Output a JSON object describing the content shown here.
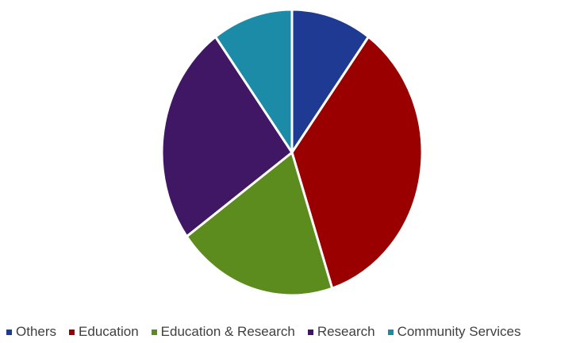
{
  "chart_data": {
    "type": "pie",
    "title": "",
    "slices": [
      {
        "label": "Others",
        "value": 10,
        "color": "#1F3A93"
      },
      {
        "label": "Education",
        "value": 35,
        "color": "#9B0000"
      },
      {
        "label": "Education & Research",
        "value": 20,
        "color": "#5D8C1E"
      },
      {
        "label": "Research",
        "value": 25,
        "color": "#3F1764"
      },
      {
        "label": "Community Services",
        "value": 10,
        "color": "#1B8BA8"
      }
    ],
    "legend_position": "bottom"
  }
}
